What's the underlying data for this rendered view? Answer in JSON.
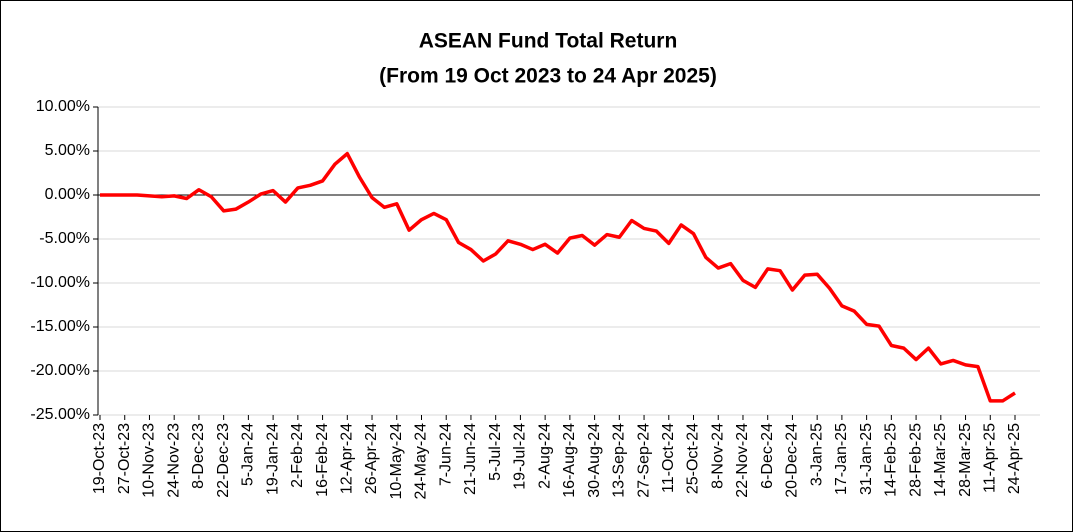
{
  "chart_data": {
    "type": "line",
    "title": "ASEAN Fund Total Return",
    "subtitle": "(From 19 Oct 2023 to 24 Apr 2025)",
    "categories": [
      "19-Oct-23",
      null,
      "27-Oct-23",
      null,
      "10-Nov-23",
      null,
      "24-Nov-23",
      null,
      "8-Dec-23",
      null,
      "22-Dec-23",
      null,
      "5-Jan-24",
      null,
      "19-Jan-24",
      null,
      "2-Feb-24",
      null,
      "16-Feb-24",
      null,
      "12-Apr-24",
      null,
      "26-Apr-24",
      null,
      "10-May-24",
      null,
      "24-May-24",
      null,
      "7-Jun-24",
      null,
      "21-Jun-24",
      null,
      "5-Jul-24",
      null,
      "19-Jul-24",
      null,
      "2-Aug-24",
      null,
      "16-Aug-24",
      null,
      "30-Aug-24",
      null,
      "13-Sep-24",
      null,
      "27-Sep-24",
      null,
      "11-Oct-24",
      null,
      "25-Oct-24",
      null,
      "8-Nov-24",
      null,
      "22-Nov-24",
      null,
      "6-Dec-24",
      null,
      "20-Dec-24",
      null,
      "3-Jan-25",
      null,
      "17-Jan-25",
      null,
      "31-Jan-25",
      null,
      "14-Feb-25",
      null,
      "28-Feb-25",
      null,
      "14-Mar-25",
      null,
      "28-Mar-25",
      null,
      "11-Apr-25",
      null,
      "24-Apr-25"
    ],
    "series": [
      {
        "color": "#ff0000",
        "values": [
          0,
          0,
          0,
          0,
          -0.1,
          -0.2,
          -0.1,
          -0.4,
          0.6,
          -0.2,
          -1.8,
          -1.6,
          -0.8,
          0.1,
          0.5,
          -0.8,
          0.8,
          1.1,
          1.6,
          3.5,
          4.7,
          2.0,
          -0.3,
          -1.4,
          -1.0,
          -4.0,
          -2.8,
          -2.1,
          -2.8,
          -5.4,
          -6.2,
          -7.5,
          -6.7,
          -5.2,
          -5.6,
          -6.2,
          -5.6,
          -6.6,
          -4.9,
          -4.6,
          -5.7,
          -4.5,
          -4.8,
          -2.9,
          -3.8,
          -4.1,
          -5.5,
          -3.4,
          -4.4,
          -7.1,
          -8.3,
          -7.8,
          -9.7,
          -10.5,
          -8.4,
          -8.6,
          -10.8,
          -9.1,
          -9.0,
          -10.6,
          -12.6,
          -13.2,
          -14.7,
          -14.9,
          -17.1,
          -17.4,
          -18.7,
          -17.4,
          -19.2,
          -18.8,
          -19.3,
          -19.5,
          -23.4,
          -23.4,
          -22.5
        ]
      }
    ],
    "ylim": [
      -25,
      10
    ],
    "yticks": [
      {
        "value": -25,
        "label": "-25.00%"
      },
      {
        "value": -20,
        "label": "-20.00%"
      },
      {
        "value": -15,
        "label": "-15.00%"
      },
      {
        "value": -10,
        "label": "-10.00%"
      },
      {
        "value": -5,
        "label": "-5.00%"
      },
      {
        "value": 0,
        "label": "0.00%"
      },
      {
        "value": 5,
        "label": "5.00%"
      },
      {
        "value": 10,
        "label": "10.00%"
      }
    ],
    "grid": true
  }
}
